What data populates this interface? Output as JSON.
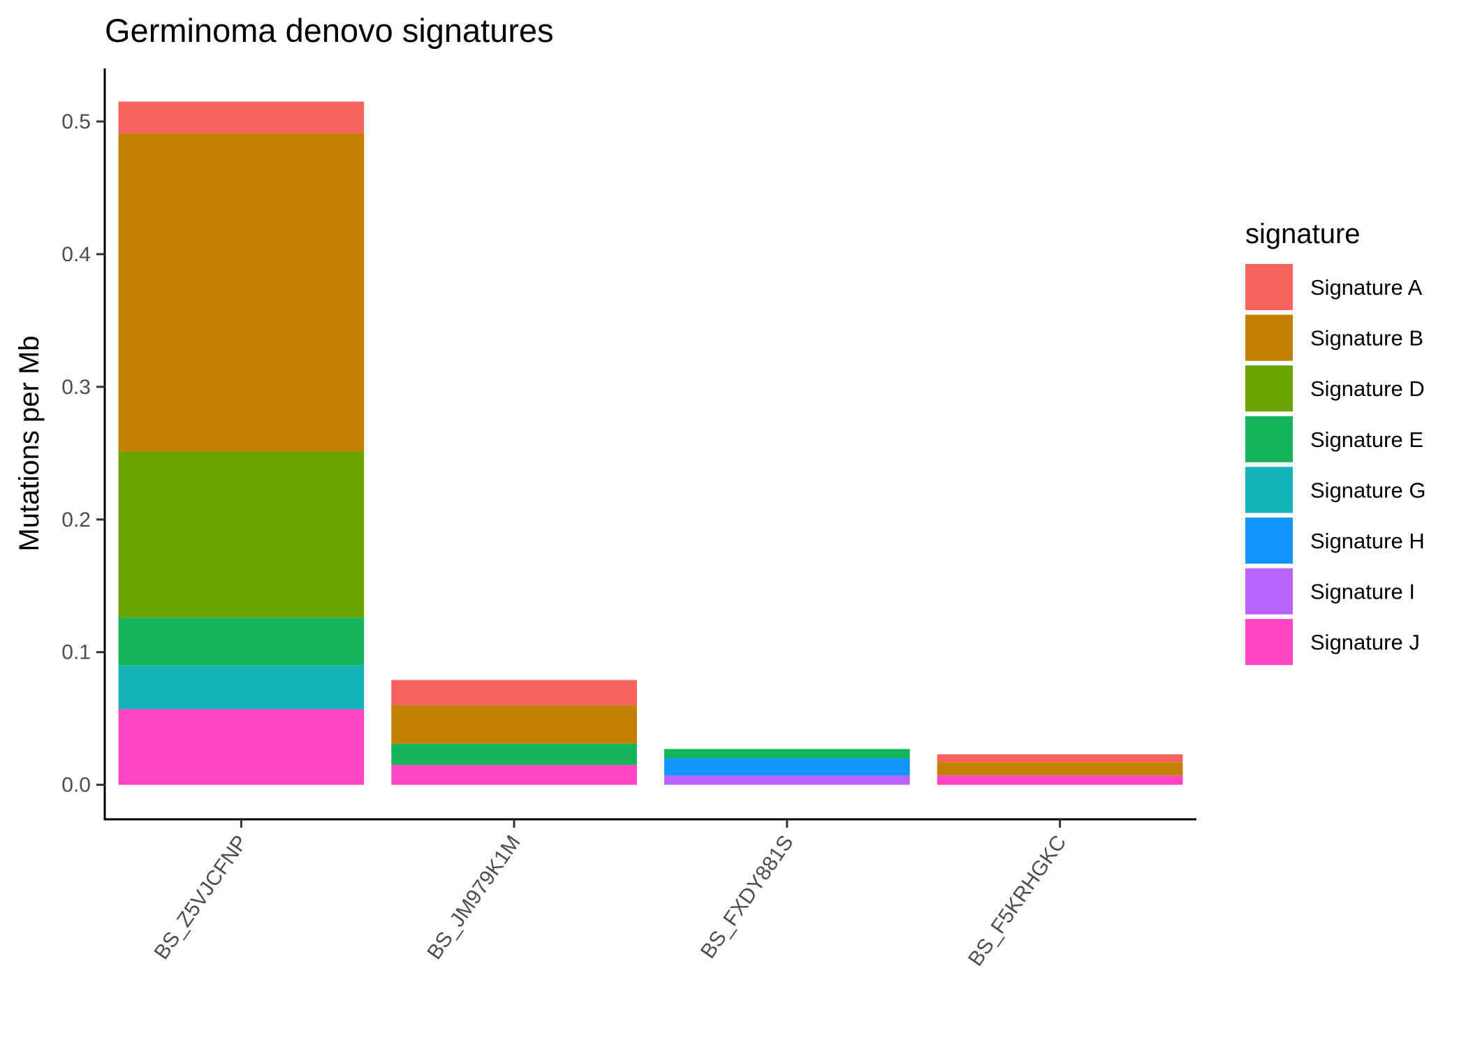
{
  "chart_data": {
    "type": "bar",
    "stacked": true,
    "title": "Germinoma denovo signatures",
    "xlabel": "",
    "ylabel": "Mutations per Mb",
    "ylim": [
      -0.026,
      0.54
    ],
    "yticks": [
      "0.0",
      "0.1",
      "0.2",
      "0.3",
      "0.4",
      "0.5"
    ],
    "grid": false,
    "legend_title": "signature",
    "legend_position": "right",
    "categories": [
      "BS_Z5VJCFNP",
      "BS_JM979K1M",
      "BS_FXDY881S",
      "BS_F5KRHGKC"
    ],
    "series": [
      {
        "name": "Signature J",
        "color": "#FB46C2",
        "values": [
          0.057,
          0.015,
          0.0,
          0.007
        ]
      },
      {
        "name": "Signature I",
        "color": "#B964F8",
        "values": [
          0.0,
          0.0,
          0.007,
          0.0
        ]
      },
      {
        "name": "Signature H",
        "color": "#1296FB",
        "values": [
          0.0,
          0.0,
          0.013,
          0.0
        ]
      },
      {
        "name": "Signature G",
        "color": "#18B3B8",
        "values": [
          0.033,
          0.0,
          0.0,
          0.0
        ]
      },
      {
        "name": "Signature E",
        "color": "#16B45A",
        "values": [
          0.036,
          0.016,
          0.007,
          0.0
        ]
      },
      {
        "name": "Signature D",
        "color": "#6BA401",
        "values": [
          0.125,
          0.0,
          0.0,
          0.0
        ]
      },
      {
        "name": "Signature B",
        "color": "#C18204",
        "values": [
          0.24,
          0.029,
          0.0,
          0.01
        ]
      },
      {
        "name": "Signature A",
        "color": "#F5625F",
        "values": [
          0.024,
          0.019,
          0.0,
          0.006
        ]
      }
    ],
    "legend_order": [
      "Signature A",
      "Signature B",
      "Signature D",
      "Signature E",
      "Signature G",
      "Signature H",
      "Signature I",
      "Signature J"
    ]
  }
}
